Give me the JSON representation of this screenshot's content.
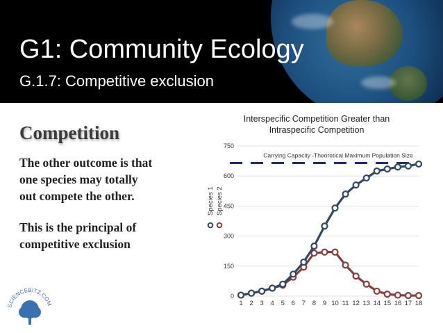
{
  "header": {
    "title": "G1: Community Ecology",
    "subtitle": "G.1.7: Competitive exclusion"
  },
  "body": {
    "heading": "Competition",
    "paragraph1_lines": [
      "The other outcome is that",
      "one species may totally",
      "out compete the other."
    ],
    "paragraph2_lines": [
      "This is the principal of",
      "competitive exclusion"
    ]
  },
  "logo": {
    "text": "SCIENCEBITZ.COM"
  },
  "colors": {
    "species1": "#2f4863",
    "species2": "#8e3b3b",
    "carrying_capacity_line": "#1f2a8a",
    "header_bg": "#000000"
  },
  "chart_data": {
    "type": "line",
    "title": "Interspecific Competition Greater than Intraspecific Competition",
    "title_lines": [
      "Interspecific Competition Greater than",
      "Intraspecific Competition"
    ],
    "x": [
      1,
      2,
      3,
      4,
      5,
      6,
      7,
      8,
      9,
      10,
      11,
      12,
      13,
      14,
      15,
      16,
      17,
      18
    ],
    "ylim": [
      0,
      750
    ],
    "yticks": [
      0,
      150,
      300,
      450,
      600,
      750
    ],
    "grid": "horizontal",
    "legend": "left, rotated",
    "series": [
      {
        "name": "Species 1",
        "values": [
          5,
          15,
          25,
          40,
          60,
          110,
          170,
          250,
          350,
          440,
          510,
          555,
          590,
          625,
          635,
          645,
          650,
          660
        ]
      },
      {
        "name": "Species 2",
        "values": [
          5,
          15,
          25,
          40,
          55,
          95,
          145,
          215,
          220,
          220,
          155,
          100,
          60,
          25,
          10,
          5,
          3,
          3
        ]
      }
    ],
    "annotation": {
      "text": "Carrying Capacity -Theoretical Maximum Population Size",
      "y": 665
    }
  }
}
